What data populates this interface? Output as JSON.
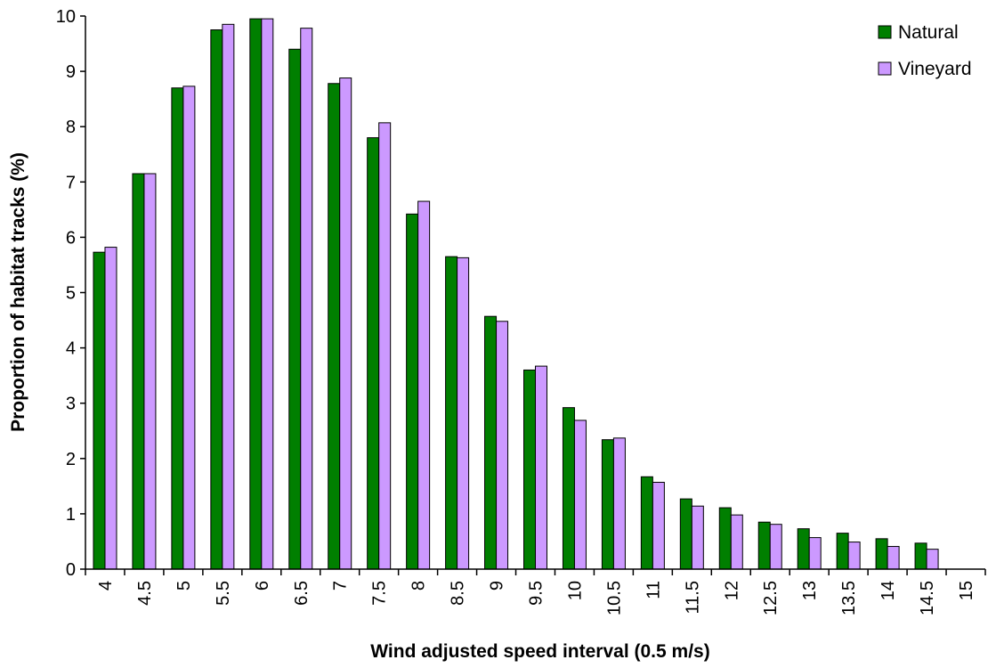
{
  "chart_data": {
    "type": "bar",
    "title": "",
    "xlabel": "Wind adjusted speed interval (0.5 m/s)",
    "ylabel": "Proportion of habitat tracks (%)",
    "ylim": [
      0,
      10
    ],
    "yticks": [
      "0",
      "1",
      "2",
      "3",
      "4",
      "5",
      "6",
      "7",
      "8",
      "9",
      "10"
    ],
    "grid": false,
    "legend_position": "top-right",
    "categories": [
      "4",
      "4.5",
      "5",
      "5.5",
      "6",
      "6.5",
      "7",
      "7.5",
      "8",
      "8.5",
      "9",
      "9.5",
      "10",
      "10.5",
      "11",
      "11.5",
      "12",
      "12.5",
      "13",
      "13.5",
      "14",
      "14.5",
      "15"
    ],
    "series": [
      {
        "name": "Natural",
        "color": "#007f00",
        "values": [
          5.73,
          7.15,
          8.7,
          9.75,
          9.95,
          9.4,
          8.78,
          7.8,
          6.42,
          5.65,
          4.57,
          3.6,
          2.92,
          2.34,
          1.67,
          1.27,
          1.11,
          0.85,
          0.73,
          0.65,
          0.55,
          0.47,
          0
        ]
      },
      {
        "name": "Vineyard",
        "color": "#cc99ff",
        "values": [
          5.82,
          7.15,
          8.73,
          9.85,
          9.95,
          9.78,
          8.88,
          8.07,
          6.65,
          5.63,
          4.48,
          3.67,
          2.69,
          2.37,
          1.57,
          1.14,
          0.98,
          0.81,
          0.57,
          0.49,
          0.41,
          0.36,
          0
        ]
      }
    ]
  }
}
